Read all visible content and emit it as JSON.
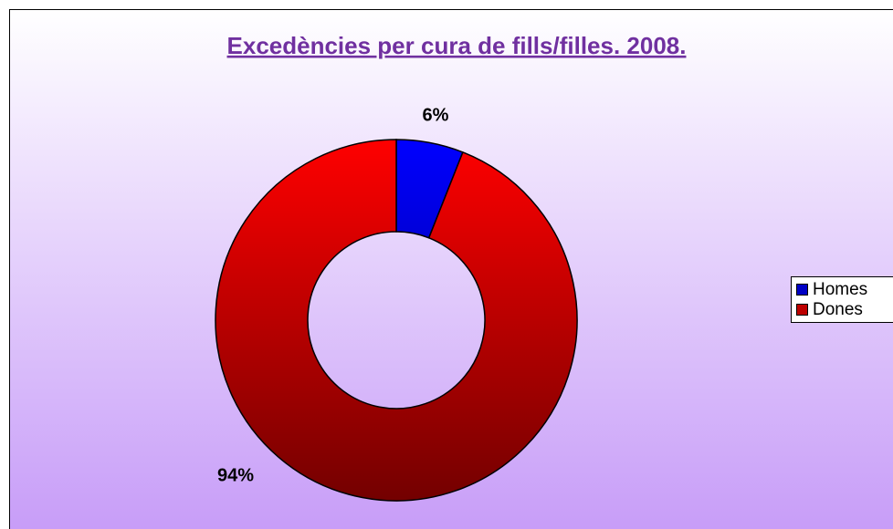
{
  "chart_data": {
    "type": "donut",
    "title": "Excedències per cura de fills/filles. 2008.",
    "categories": [
      "Homes",
      "Dones"
    ],
    "values": [
      6,
      94
    ],
    "value_labels": [
      "6%",
      "94%"
    ],
    "colors": [
      "#0000ff",
      "#ff0000"
    ],
    "legend": "right"
  }
}
